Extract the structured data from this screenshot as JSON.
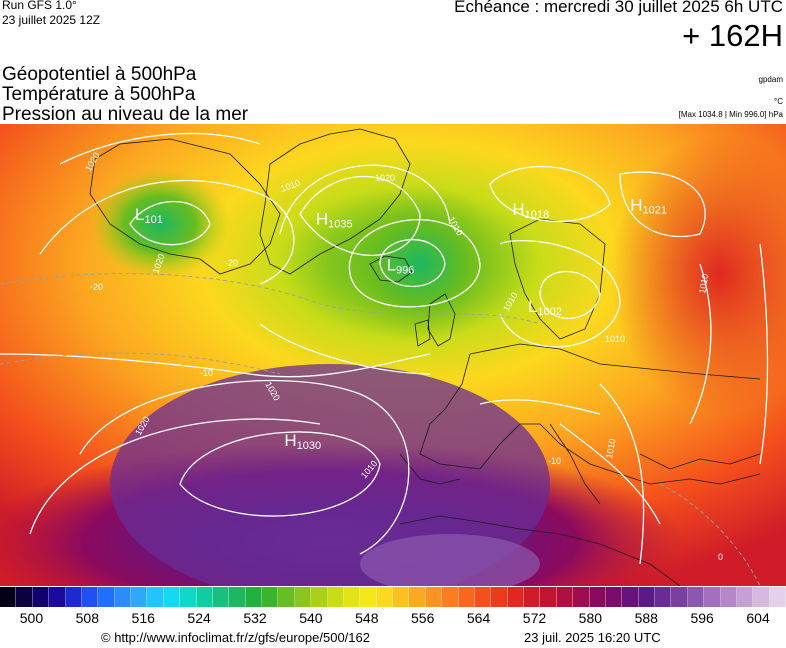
{
  "header": {
    "run_label": "Run GFS 1.0°",
    "run_date": "23 juillet 2025 12Z",
    "echeance": "Echéance : mercredi 30 juillet 2025 6h UTC",
    "offset": "+ 162H"
  },
  "titles": {
    "line1": "Géopotentiel à 500hPa",
    "line2": "Température à 500hPa",
    "line3": "Pression au niveau de la mer"
  },
  "units": {
    "geopotential": "gpdam",
    "temperature": "°C",
    "pressure_range": "[Max 1034.8 | Min 996.0] hPa"
  },
  "pressure_centers": [
    {
      "type": "H",
      "value": "1018",
      "lon_pct": 0.69,
      "lat_pct": 0.18
    },
    {
      "type": "H",
      "value": "1021",
      "lon_pct": 0.84,
      "lat_pct": 0.17
    },
    {
      "type": "H",
      "value": "1035",
      "lon_pct": 0.44,
      "lat_pct": 0.2
    },
    {
      "type": "H",
      "value": "1030",
      "lon_pct": 0.4,
      "lat_pct": 0.68
    },
    {
      "type": "L",
      "value": "996",
      "lon_pct": 0.53,
      "lat_pct": 0.3
    },
    {
      "type": "L",
      "value": "1002",
      "lon_pct": 0.71,
      "lat_pct": 0.39
    },
    {
      "type": "L",
      "value": "101",
      "lon_pct": 0.21,
      "lat_pct": 0.19
    }
  ],
  "contour_labels": [
    "1020",
    "1010",
    "1020",
    "1010",
    "1020",
    "1020",
    "1010",
    "1010",
    "1020",
    "1010",
    "1010",
    "1010",
    "-20",
    "-20",
    "-10",
    "-10",
    "0"
  ],
  "colorbar": {
    "colors": [
      "#05001a",
      "#0a0040",
      "#100070",
      "#1a0aa0",
      "#1e2ad0",
      "#2050f0",
      "#2070ff",
      "#2a8cff",
      "#2ea8ff",
      "#22c4ff",
      "#12d8f0",
      "#10d8c8",
      "#10cca0",
      "#18c080",
      "#1cb860",
      "#20b040",
      "#3ab42a",
      "#66bc20",
      "#8ac41c",
      "#aad018",
      "#c8dc18",
      "#e2e418",
      "#f4e81a",
      "#fcd81e",
      "#fcc020",
      "#fca820",
      "#fc9220",
      "#fc7c1e",
      "#fa661c",
      "#f4501c",
      "#ec3a1c",
      "#e02820",
      "#d01c28",
      "#c01430",
      "#b01040",
      "#a00c50",
      "#8c0a5e",
      "#7a0c6c",
      "#6a127a",
      "#5c1a86",
      "#6a2c94",
      "#7a40a0",
      "#8c58ae",
      "#a070bc",
      "#b488c8",
      "#c6a0d4",
      "#d6b8e0",
      "#e4d0ea"
    ],
    "tick_labels": [
      "500",
      "508",
      "516",
      "524",
      "532",
      "540",
      "548",
      "556",
      "564",
      "572",
      "580",
      "588",
      "596",
      "604"
    ],
    "tick_positions": [
      0.054,
      0.15,
      0.246,
      0.342,
      0.438,
      0.534,
      0.63,
      0.726,
      0.822,
      0.918,
      1.014,
      1.11,
      1.206,
      1.302
    ]
  },
  "footer": {
    "copyright": "© http://www.infoclimat.fr/z/gfs/europe/500/162",
    "generated": "23 juil. 2025 16:20 UTC"
  }
}
